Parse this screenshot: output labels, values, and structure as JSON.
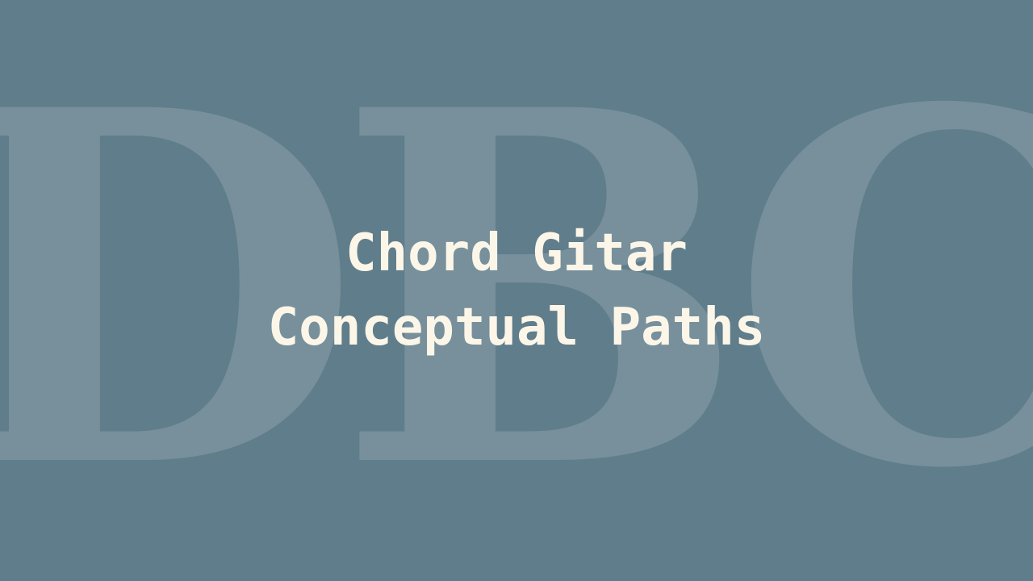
{
  "watermark": {
    "text": "DBC"
  },
  "title": {
    "line1": "Chord Gitar",
    "line2": "Conceptual Paths"
  },
  "colors": {
    "background": "#607d8b",
    "title_text": "#fcf6e8",
    "watermark": "rgba(255,255,255,0.15)"
  }
}
